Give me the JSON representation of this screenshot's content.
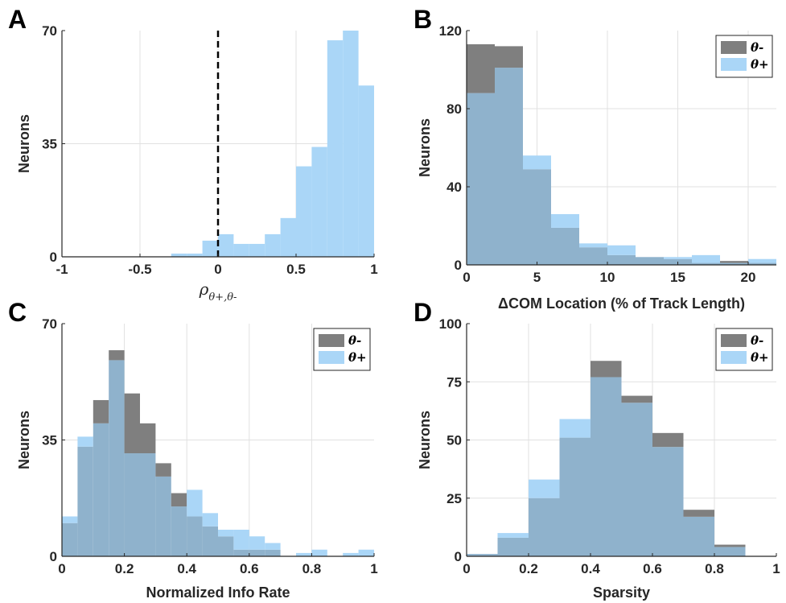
{
  "colors": {
    "theta_minus": "#7f7f7f",
    "theta_plus": "#aad6f7",
    "overlap": "#8fb2cc",
    "grid": "#e1e1e1",
    "axis": "#262626"
  },
  "chart_data": [
    {
      "panel": "A",
      "type": "bar",
      "xlabel": "ρθ+,θ-",
      "xlabel_main": "ρ",
      "xlabel_sub": "θ+,θ-",
      "ylabel": "Neurons",
      "xlim": [
        -1,
        1
      ],
      "ylim": [
        0,
        70
      ],
      "xticks": [
        -1,
        -0.5,
        0,
        0.5,
        1
      ],
      "xtick_labels": [
        "-1",
        "-0.5",
        "0",
        "0.5",
        "1"
      ],
      "yticks": [
        0,
        35,
        70
      ],
      "ytick_labels": [
        "0",
        "35",
        "70"
      ],
      "vline": 0,
      "bin_edges": [
        -0.3,
        -0.2,
        -0.1,
        0,
        0.1,
        0.2,
        0.3,
        0.4,
        0.5,
        0.6,
        0.7,
        0.8,
        0.9,
        1.0
      ],
      "series": [
        {
          "key": "theta_plus",
          "values": [
            1,
            1,
            5,
            7,
            4,
            4,
            7,
            12,
            28,
            34,
            67,
            70,
            53
          ]
        }
      ]
    },
    {
      "panel": "B",
      "type": "bar",
      "xlabel": "ΔCOM Location (% of Track Length)",
      "ylabel": "Neurons",
      "xlim": [
        0,
        22
      ],
      "ylim": [
        0,
        120
      ],
      "xticks": [
        0,
        5,
        10,
        15,
        20
      ],
      "xtick_labels": [
        "0",
        "5",
        "10",
        "15",
        "20"
      ],
      "yticks": [
        0,
        40,
        80,
        120
      ],
      "ytick_labels": [
        "0",
        "40",
        "80",
        "120"
      ],
      "legend": [
        "θ-",
        "θ+"
      ],
      "legend_position": "top-right",
      "bin_edges": [
        0,
        2,
        4,
        6,
        8,
        10,
        12,
        14,
        16,
        18,
        20,
        22
      ],
      "series": [
        {
          "key": "theta_minus",
          "name": "θ-",
          "values": [
            113,
            112,
            49,
            19,
            9,
            5,
            4,
            3,
            1,
            2,
            1
          ]
        },
        {
          "key": "theta_plus",
          "name": "θ+",
          "values": [
            88,
            101,
            56,
            26,
            11,
            10,
            4,
            4,
            5,
            1,
            3
          ]
        }
      ]
    },
    {
      "panel": "C",
      "type": "bar",
      "xlabel": "Normalized Info Rate",
      "ylabel": "Neurons",
      "xlim": [
        0,
        1
      ],
      "ylim": [
        0,
        70
      ],
      "xticks": [
        0,
        0.2,
        0.4,
        0.6,
        0.8,
        1
      ],
      "xtick_labels": [
        "0",
        "0.2",
        "0.4",
        "0.6",
        "0.8",
        "1"
      ],
      "yticks": [
        0,
        35,
        70
      ],
      "ytick_labels": [
        "0",
        "35",
        "70"
      ],
      "legend": [
        "θ-",
        "θ+"
      ],
      "legend_position": "top-right",
      "bin_edges": [
        0,
        0.05,
        0.1,
        0.15,
        0.2,
        0.25,
        0.3,
        0.35,
        0.4,
        0.45,
        0.5,
        0.55,
        0.6,
        0.65,
        0.7,
        0.75,
        0.8,
        0.85,
        0.9,
        0.95,
        1.0
      ],
      "series": [
        {
          "key": "theta_minus",
          "name": "θ-",
          "values": [
            10,
            33,
            47,
            62,
            49,
            40,
            28,
            19,
            12,
            9,
            6,
            2,
            2,
            2,
            0,
            0,
            0,
            0,
            0,
            0
          ]
        },
        {
          "key": "theta_plus",
          "name": "θ+",
          "values": [
            12,
            36,
            40,
            59,
            31,
            31,
            24,
            15,
            20,
            13,
            8,
            8,
            6,
            4,
            0,
            1,
            2,
            0,
            1,
            2
          ]
        }
      ]
    },
    {
      "panel": "D",
      "type": "bar",
      "xlabel": "Sparsity",
      "ylabel": "Neurons",
      "xlim": [
        0,
        1
      ],
      "ylim": [
        0,
        100
      ],
      "xticks": [
        0,
        0.2,
        0.4,
        0.6,
        0.8,
        1
      ],
      "xtick_labels": [
        "0",
        "0.2",
        "0.4",
        "0.6",
        "0.8",
        "1"
      ],
      "yticks": [
        0,
        25,
        50,
        75,
        100
      ],
      "ytick_labels": [
        "0",
        "25",
        "50",
        "75",
        "100"
      ],
      "legend": [
        "θ-",
        "θ+"
      ],
      "legend_position": "top-right",
      "bin_edges": [
        0,
        0.1,
        0.2,
        0.3,
        0.4,
        0.5,
        0.6,
        0.7,
        0.8,
        0.9,
        1.0
      ],
      "series": [
        {
          "key": "theta_minus",
          "name": "θ-",
          "values": [
            1,
            8,
            25,
            51,
            84,
            69,
            53,
            20,
            5,
            0
          ]
        },
        {
          "key": "theta_plus",
          "name": "θ+",
          "values": [
            1,
            10,
            33,
            59,
            77,
            66,
            47,
            17,
            4,
            0
          ]
        }
      ]
    }
  ]
}
